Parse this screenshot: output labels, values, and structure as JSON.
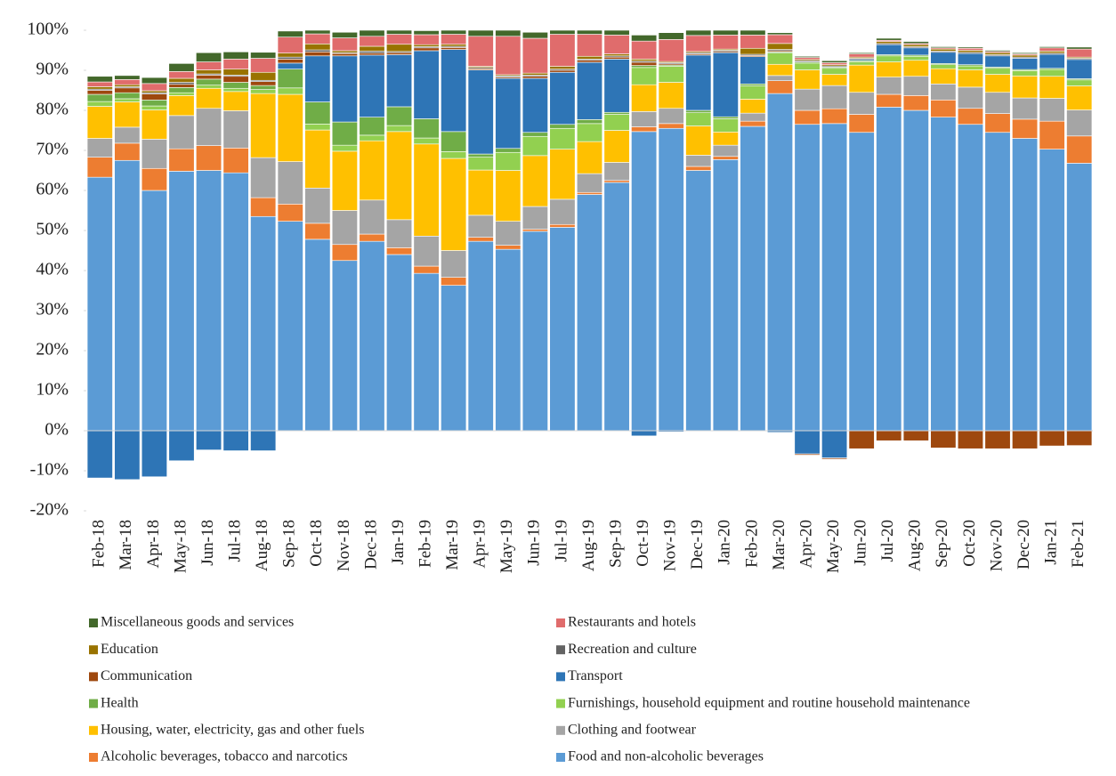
{
  "chart_data": {
    "type": "stacked-bar",
    "categories": [
      "Feb-18",
      "Mar-18",
      "Apr-18",
      "May-18",
      "Jun-18",
      "Jul-18",
      "Aug-18",
      "Sep-18",
      "Oct-18",
      "Nov-18",
      "Dec-18",
      "Jan-19",
      "Feb-19",
      "Mar-19",
      "Apr-19",
      "May-19",
      "Jun-19",
      "Jul-19",
      "Aug-19",
      "Sep-19",
      "Oct-19",
      "Nov-19",
      "Dec-19",
      "Jan-20",
      "Feb-20",
      "Mar-20",
      "Apr-20",
      "May-20",
      "Jun-20",
      "Jul-20",
      "Aug-20",
      "Sep-20",
      "Oct-20",
      "Nov-20",
      "Dec-20",
      "Jan-21",
      "Feb-21"
    ],
    "ylim": [
      -20,
      100
    ],
    "yticks": [
      {
        "value": -20,
        "label": "-20%"
      },
      {
        "value": -10,
        "label": "-10%"
      },
      {
        "value": 0,
        "label": "0%"
      },
      {
        "value": 10,
        "label": "10%"
      },
      {
        "value": 20,
        "label": "20%"
      },
      {
        "value": 30,
        "label": "30%"
      },
      {
        "value": 40,
        "label": "40%"
      },
      {
        "value": 50,
        "label": "50%"
      },
      {
        "value": 60,
        "label": "60%"
      },
      {
        "value": 70,
        "label": "70%"
      },
      {
        "value": 80,
        "label": "80%"
      },
      {
        "value": 90,
        "label": "90%"
      },
      {
        "value": 100,
        "label": "100%"
      }
    ],
    "legend": "bottom",
    "series": [
      {
        "name": "Food and non-alcoholic beverages",
        "color": "#5b9bd5",
        "values": [
          63.3,
          67.5,
          60,
          64.8,
          65,
          64.4,
          53.5,
          52.3,
          47.8,
          42.5,
          47.3,
          44,
          39.3,
          36.3,
          47.3,
          45.3,
          49.8,
          50.8,
          59,
          62,
          74.7,
          75.5,
          65,
          67.7,
          76,
          84.2,
          76.5,
          76.7,
          74.5,
          80.8,
          80,
          78.3,
          76.5,
          74.5,
          73,
          70.3,
          66.8
        ]
      },
      {
        "name": "Alcoholic beverages, tobacco and narcotics",
        "color": "#ed7d31",
        "values": [
          5,
          4.3,
          5.5,
          5.6,
          6.2,
          6.2,
          4.7,
          4.3,
          4,
          4,
          1.8,
          1.7,
          1.8,
          2,
          1,
          1,
          0.5,
          0.7,
          0.5,
          0.5,
          1.2,
          1.2,
          1,
          0.8,
          1.3,
          3.2,
          3.5,
          3.7,
          4.5,
          3.2,
          3.7,
          4.3,
          4,
          4.7,
          4.8,
          7,
          6.8
        ]
      },
      {
        "name": "Clothing and footwear",
        "color": "#a5a5a5",
        "values": [
          4.7,
          4,
          7.3,
          8.3,
          9.3,
          9.3,
          10,
          10.6,
          8.8,
          8.5,
          8.5,
          7,
          7.5,
          6.7,
          5.5,
          6,
          5.7,
          6.3,
          4.7,
          4.5,
          3.8,
          3.8,
          2.8,
          2.8,
          2,
          1.3,
          5.3,
          5.8,
          5.5,
          4.3,
          4.8,
          4,
          5.3,
          5.3,
          5.3,
          5.7,
          6.5
        ]
      },
      {
        "name": "Housing, water, electricity, gas and other fuels",
        "color": "#ffc000",
        "values": [
          8,
          6.3,
          7.3,
          5,
          5,
          4.8,
          16,
          16.8,
          14.5,
          14.8,
          14.8,
          22,
          23,
          23,
          11.3,
          12.7,
          12.7,
          12.5,
          8,
          8,
          6.7,
          6.5,
          7.3,
          3.3,
          3.5,
          2.8,
          4.8,
          2.8,
          6.8,
          3.8,
          4,
          3.8,
          4.3,
          4.5,
          5.5,
          5.5,
          6
        ]
      },
      {
        "name": "Furnishings, household equipment and routine household maintenance",
        "color": "#92d050",
        "values": [
          1.2,
          0.8,
          1,
          0.7,
          0.8,
          0.8,
          1,
          1.6,
          1.5,
          1.5,
          1.4,
          1.5,
          1.5,
          1.7,
          3.2,
          4.5,
          4.8,
          5.2,
          4.5,
          4,
          4.3,
          4,
          3.3,
          3.3,
          3.3,
          2.8,
          1.7,
          1.5,
          0.8,
          1.5,
          1,
          1,
          1,
          1.5,
          1.3,
          1.7,
          1.5
        ]
      },
      {
        "name": "Health",
        "color": "#70ad47",
        "values": [
          1.8,
          1.5,
          1.5,
          1.3,
          1.5,
          1.5,
          1,
          4.7,
          5.5,
          5.8,
          4.5,
          4.7,
          4.8,
          5,
          0.8,
          1,
          1,
          1,
          1,
          0.5,
          0.5,
          0.3,
          0.6,
          0.5,
          0.5,
          0.3,
          0.3,
          0.3,
          0.3,
          0.3,
          0.3,
          0.3,
          0.3,
          0.3,
          0.3,
          0.3,
          0.3
        ]
      },
      {
        "name": "Transport",
        "color": "#2e75b6",
        "values": [
          -11.8,
          -12.2,
          -11.5,
          -7.5,
          -4.8,
          -5,
          -5,
          1.5,
          11.5,
          16.5,
          15.5,
          13,
          17,
          20.5,
          21,
          17.5,
          13.5,
          13,
          14.3,
          13.3,
          -1.3,
          -0.3,
          13.8,
          16,
          6.8,
          -0.4,
          -5.8,
          -6.8,
          0.3,
          2.5,
          1.8,
          2.8,
          2.8,
          2.8,
          2.8,
          3.5,
          4.8
        ]
      },
      {
        "name": "Communication",
        "color": "#9e480e",
        "values": [
          1,
          1.2,
          1.5,
          0.8,
          1,
          1.5,
          1,
          1,
          1,
          0.6,
          0.5,
          0.5,
          0.7,
          0.5,
          0.3,
          0.3,
          0.5,
          0.5,
          0.5,
          0.5,
          0.8,
          0.3,
          0.3,
          0.3,
          0.3,
          0.3,
          -0.3,
          -0.3,
          -4.5,
          -2.5,
          -2.5,
          -4.3,
          -4.5,
          -4.5,
          -4.5,
          -3.8,
          -3.7
        ]
      },
      {
        "name": "Recreation and culture",
        "color": "#636363",
        "values": [
          0.3,
          0.3,
          0.3,
          0.5,
          0.3,
          0.3,
          0.3,
          0.5,
          0.5,
          0.2,
          0.5,
          0.3,
          0.3,
          0.3,
          0.3,
          0.3,
          0.3,
          0.3,
          0.3,
          0.3,
          0.3,
          0.3,
          0.3,
          0.3,
          0.3,
          0.3,
          0.3,
          0.3,
          0.3,
          0.3,
          0.3,
          0.3,
          0.3,
          0.3,
          0.3,
          0.3,
          0.3
        ]
      },
      {
        "name": "Education",
        "color": "#997300",
        "values": [
          0.6,
          0.5,
          0.5,
          1,
          1,
          1.5,
          2,
          1,
          1.5,
          0.5,
          1.2,
          1.8,
          0.5,
          0.5,
          0.3,
          0.3,
          0.5,
          0.7,
          0.7,
          0.5,
          0.5,
          0.3,
          0.3,
          0.3,
          1.5,
          1.5,
          0.3,
          0.3,
          0.3,
          0.5,
          0.5,
          0.5,
          0.5,
          0.5,
          0.5,
          0.5,
          0.3
        ]
      },
      {
        "name": "Restaurants and hotels",
        "color": "#e06c6c",
        "values": [
          1.2,
          1.3,
          1.8,
          1.7,
          2,
          2.5,
          3.5,
          4,
          2.5,
          3.2,
          2.5,
          2.5,
          2.5,
          2.5,
          7.5,
          9.6,
          8.7,
          8,
          5.5,
          4.7,
          4.5,
          5.5,
          4,
          3.5,
          3.3,
          2.2,
          0.5,
          0.5,
          0.8,
          0.3,
          0.3,
          0.3,
          0.5,
          0.3,
          0.3,
          0.8,
          2
        ]
      },
      {
        "name": "Miscellaneous goods and services",
        "color": "#43682b",
        "values": [
          1.4,
          1,
          1.5,
          2,
          2.3,
          1.8,
          1.5,
          1.5,
          0.9,
          1.4,
          1.5,
          1,
          1,
          1,
          1.5,
          1.5,
          1.5,
          1,
          1,
          1.2,
          1.5,
          1.7,
          1.3,
          1.2,
          1.2,
          0.5,
          0.3,
          0.5,
          0.3,
          0.5,
          0.5,
          0.3,
          0.3,
          0.3,
          0.3,
          0.3,
          0.5
        ]
      }
    ]
  }
}
